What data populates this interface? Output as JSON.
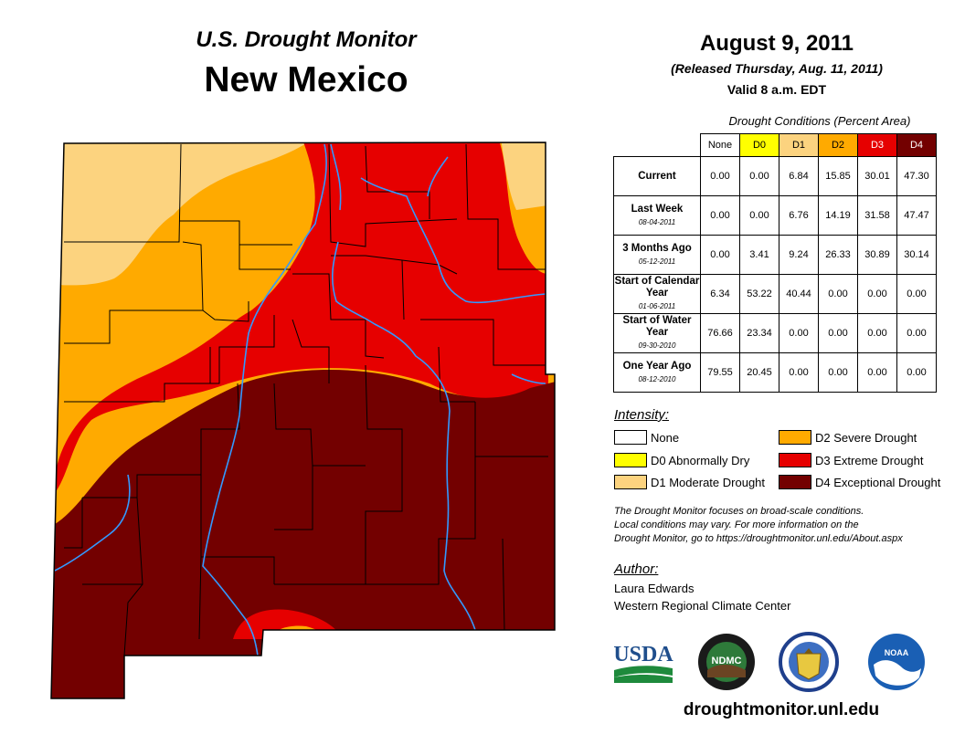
{
  "header": {
    "subtitle": "U.S. Drought Monitor",
    "state": "New Mexico",
    "date": "August 9, 2011",
    "released": "(Released Thursday, Aug. 11, 2011)",
    "valid": "Valid 8 a.m. EDT"
  },
  "table": {
    "title": "Drought Conditions (Percent Area)",
    "columns": [
      "None",
      "D0",
      "D1",
      "D2",
      "D3",
      "D4"
    ],
    "column_colors": [
      "#ffffff",
      "#ffff00",
      "#fcd37f",
      "#ffaa00",
      "#e60000",
      "#730000"
    ],
    "rows": [
      {
        "label": "Current",
        "date": "",
        "values": [
          "0.00",
          "0.00",
          "6.84",
          "15.85",
          "30.01",
          "47.30"
        ]
      },
      {
        "label": "Last Week",
        "date": "08-04-2011",
        "values": [
          "0.00",
          "0.00",
          "6.76",
          "14.19",
          "31.58",
          "47.47"
        ]
      },
      {
        "label": "3 Months Ago",
        "date": "05-12-2011",
        "values": [
          "0.00",
          "3.41",
          "9.24",
          "26.33",
          "30.89",
          "30.14"
        ]
      },
      {
        "label": "Start of Calendar Year",
        "date": "01-06-2011",
        "values": [
          "6.34",
          "53.22",
          "40.44",
          "0.00",
          "0.00",
          "0.00"
        ]
      },
      {
        "label": "Start of Water Year",
        "date": "09-30-2010",
        "values": [
          "76.66",
          "23.34",
          "0.00",
          "0.00",
          "0.00",
          "0.00"
        ]
      },
      {
        "label": "One Year Ago",
        "date": "08-12-2010",
        "values": [
          "79.55",
          "20.45",
          "0.00",
          "0.00",
          "0.00",
          "0.00"
        ]
      }
    ]
  },
  "legend": {
    "title": "Intensity:",
    "items": [
      {
        "label": "None",
        "color": "#ffffff"
      },
      {
        "label": "D0 Abnormally Dry",
        "color": "#ffff00"
      },
      {
        "label": "D1 Moderate Drought",
        "color": "#fcd37f"
      },
      {
        "label": "D2 Severe Drought",
        "color": "#ffaa00"
      },
      {
        "label": "D3 Extreme Drought",
        "color": "#e60000"
      },
      {
        "label": "D4 Exceptional Drought",
        "color": "#730000"
      }
    ]
  },
  "note": {
    "line1": "The Drought Monitor focuses on broad-scale conditions.",
    "line2": "Local conditions may vary. For more information on the",
    "line3": "Drought Monitor, go to https://droughtmonitor.unl.edu/About.aspx"
  },
  "author": {
    "heading": "Author:",
    "name": "Laura Edwards",
    "org": "Western Regional Climate Center"
  },
  "logos": {
    "usda": "USDA",
    "ndmc": "NDMC",
    "noaa": "NOAA"
  },
  "footer": {
    "url": "droughtmonitor.unl.edu"
  },
  "map_colors": {
    "d1": "#fcd37f",
    "d2": "#ffaa00",
    "d3": "#e60000",
    "d4": "#730000",
    "river": "#3399ff",
    "county_line": "#000000"
  }
}
